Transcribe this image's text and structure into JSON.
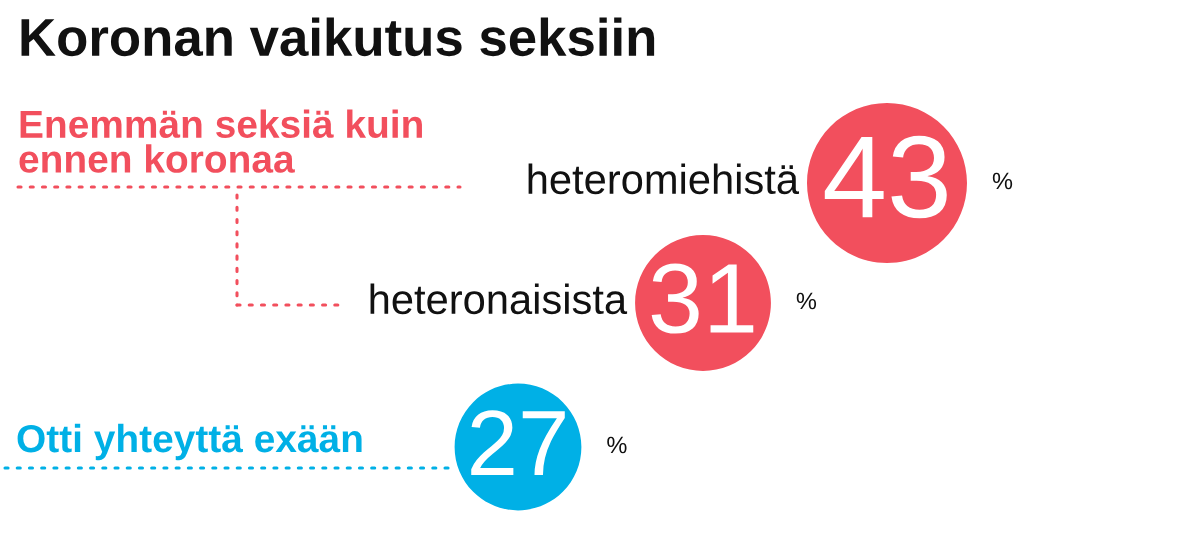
{
  "chart_data": {
    "type": "other",
    "title": "Koronan vaikutus seksiin",
    "categories": [
      "heteromiehistä",
      "heteronaisista",
      "Otti yhteyttä exään"
    ],
    "values": [
      43,
      31,
      27
    ],
    "colors": [
      "#f24f5d",
      "#f24f5d",
      "#00b0e6"
    ],
    "data_labels": true,
    "annotations": [
      "Enemmän seksiä kuin\nennen koronaa",
      "%",
      "%",
      "%"
    ]
  }
}
